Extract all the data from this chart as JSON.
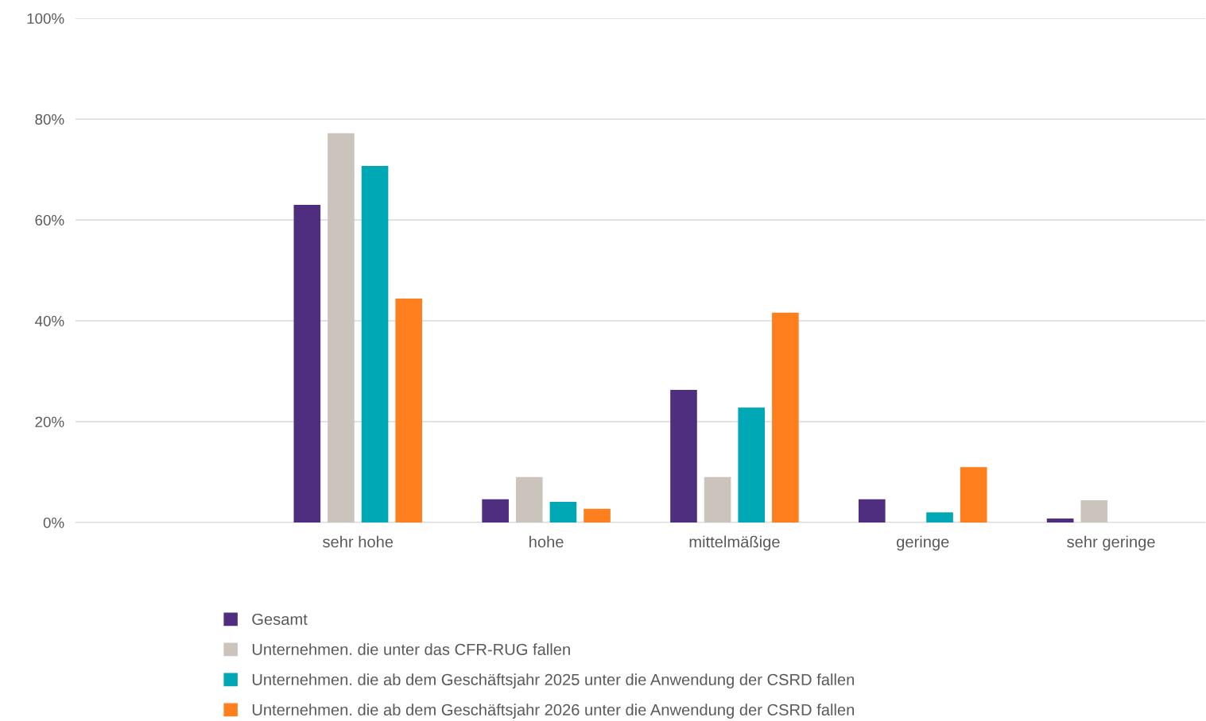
{
  "chart_data": {
    "type": "bar",
    "categories": [
      null,
      "sehr hohe",
      "hohe",
      "mittelmäßige",
      "geringe",
      "sehr geringe"
    ],
    "series": [
      {
        "name": "Gesamt",
        "color": "#4f2d7f",
        "values": [
          null,
          63.0,
          4.6,
          26.3,
          4.6,
          0.8
        ]
      },
      {
        "name": "Unternehmen. die unter das CFR-RUG fallen",
        "color": "#cbc4bc",
        "values": [
          null,
          77.2,
          9.0,
          9.0,
          0,
          4.4
        ]
      },
      {
        "name": "Unternehmen. die ab dem Geschäftsjahr 2025 unter die Anwendung der CSRD fallen",
        "color": "#00a7b5",
        "values": [
          null,
          70.7,
          4.1,
          22.8,
          2.0,
          0
        ]
      },
      {
        "name": "Unternehmen. die ab dem Geschäftsjahr 2026 unter die Anwendung der CSRD fallen",
        "color": "#ff7f1e",
        "values": [
          null,
          44.4,
          2.7,
          41.6,
          11.0,
          0
        ]
      }
    ],
    "ylim": [
      0,
      100
    ],
    "yticks": [
      {
        "value": 0,
        "label": "0%"
      },
      {
        "value": 20,
        "label": "20%"
      },
      {
        "value": 40,
        "label": "40%"
      },
      {
        "value": 60,
        "label": "60%"
      },
      {
        "value": 80,
        "label": "80%"
      },
      {
        "value": 100,
        "label": "100%"
      }
    ],
    "grid": "y",
    "legend": "bottom"
  }
}
